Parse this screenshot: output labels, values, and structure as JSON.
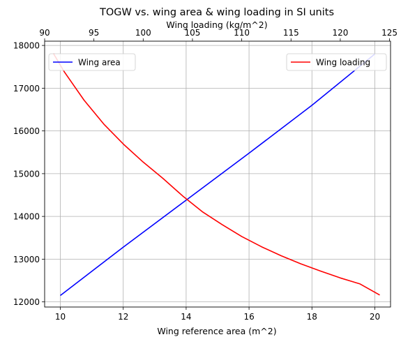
{
  "chart_data": {
    "type": "line",
    "title": "TOGW vs. wing area & wing loading in SI units",
    "xlabel": "Wing reference area (m^2)",
    "x2label": "Wing loading (kg/m^2)",
    "ylabel": "",
    "xlim": [
      9.5,
      20.5
    ],
    "x2lim": [
      90.0,
      125.1
    ],
    "ylim": [
      11880,
      18100
    ],
    "xticks": [
      10,
      12,
      14,
      16,
      18,
      20
    ],
    "x2ticks": [
      90,
      95,
      100,
      105,
      110,
      115,
      120,
      125
    ],
    "yticks": [
      12000,
      13000,
      14000,
      15000,
      16000,
      17000,
      18000
    ],
    "grid": true,
    "series": [
      {
        "name": "Wing area",
        "axis": "bottom",
        "color": "#0000ff",
        "x": [
          10,
          12,
          14,
          16,
          18,
          20
        ],
        "y": [
          12150,
          13280,
          14380,
          15480,
          16600,
          17800
        ]
      },
      {
        "name": "Wing loading",
        "axis": "top",
        "color": "#ff0000",
        "x": [
          90.9,
          92,
          94,
          96,
          98,
          100,
          102,
          104,
          106,
          108,
          110,
          112,
          114,
          116,
          118,
          120,
          122,
          124
        ],
        "y": [
          17810,
          17380,
          16720,
          16160,
          15690,
          15270,
          14890,
          14480,
          14110,
          13810,
          13530,
          13290,
          13080,
          12890,
          12720,
          12560,
          12420,
          12160
        ]
      }
    ],
    "legends": [
      {
        "placement": "top-left",
        "entries": [
          "Wing area"
        ]
      },
      {
        "placement": "top-right",
        "entries": [
          "Wing loading"
        ]
      }
    ]
  }
}
